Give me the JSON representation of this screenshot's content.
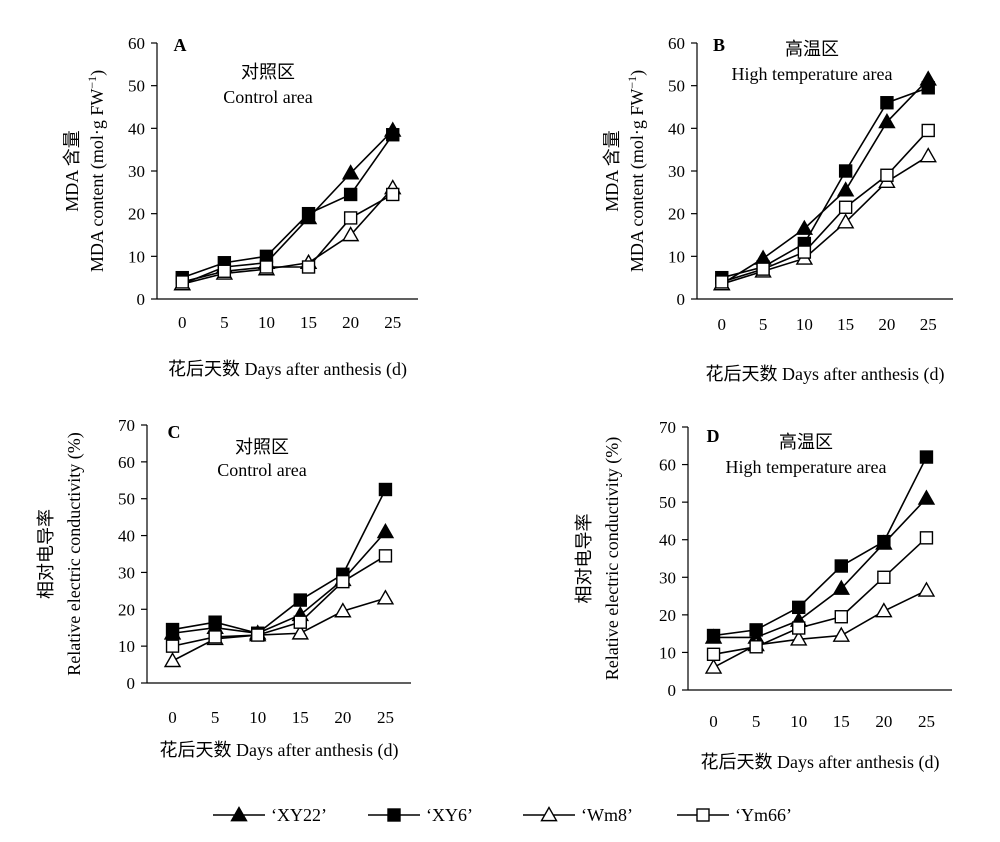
{
  "chart_data": [
    {
      "type": "line",
      "panel_label": "A",
      "annotation_cn": "对照区",
      "annotation_en": "Control area",
      "ylabel_cn": "MDA 含量",
      "ylabel_en": "MDA content (mol·g FW",
      "ylabel_sup": "−1",
      "ylabel_close": ")",
      "xlabel": "花后天数  Days after anthesis (d)",
      "x": [
        0,
        5,
        10,
        15,
        20,
        25
      ],
      "xlim": [
        -3,
        28
      ],
      "ylim": [
        0,
        60
      ],
      "yticks": [
        0,
        10,
        20,
        30,
        40,
        50,
        60
      ],
      "grid": false,
      "series": [
        {
          "name": "‘XY22’",
          "marker": "triangle-filled",
          "values": [
            3.5,
            7.5,
            8.5,
            19,
            29.5,
            39.5
          ]
        },
        {
          "name": "‘XY6’",
          "marker": "square-filled",
          "values": [
            5,
            8.5,
            10,
            20,
            24.5,
            38.5
          ]
        },
        {
          "name": "‘Wm8’",
          "marker": "triangle-open",
          "values": [
            3.5,
            6,
            7,
            8.5,
            15,
            26
          ]
        },
        {
          "name": "‘Ym66’",
          "marker": "square-open",
          "values": [
            4,
            6.5,
            7.5,
            7.5,
            19,
            24.5
          ]
        }
      ]
    },
    {
      "type": "line",
      "panel_label": "B",
      "annotation_cn": "高温区",
      "annotation_en": "High temperature area",
      "ylabel_cn": "MDA 含量",
      "ylabel_en": "MDA content (mol·g FW",
      "ylabel_sup": "−1",
      "ylabel_close": ")",
      "xlabel": "花后天数  Days after anthesis (d)",
      "x": [
        0,
        5,
        10,
        15,
        20,
        25
      ],
      "xlim": [
        -3,
        28
      ],
      "ylim": [
        0,
        60
      ],
      "yticks": [
        0,
        10,
        20,
        30,
        40,
        50,
        60
      ],
      "grid": false,
      "series": [
        {
          "name": "‘XY22’",
          "marker": "triangle-filled",
          "values": [
            3.5,
            9.5,
            16.5,
            25.5,
            41.5,
            51.5
          ]
        },
        {
          "name": "‘XY6’",
          "marker": "square-filled",
          "values": [
            5,
            7.5,
            13,
            30,
            46,
            49.5
          ]
        },
        {
          "name": "‘Wm8’",
          "marker": "triangle-open",
          "values": [
            3.5,
            6.5,
            9.5,
            18,
            27.5,
            33.5
          ]
        },
        {
          "name": "‘Ym66’",
          "marker": "square-open",
          "values": [
            4,
            7,
            11,
            21.5,
            29,
            39.5
          ]
        }
      ]
    },
    {
      "type": "line",
      "panel_label": "C",
      "annotation_cn": "对照区",
      "annotation_en": "Control area",
      "ylabel_cn": "相对电导率",
      "ylabel_en": "Relative electric conductivity (%)",
      "xlabel": "花后天数  Days after anthesis (d)",
      "x": [
        0,
        5,
        10,
        15,
        20,
        25
      ],
      "xlim": [
        -3,
        28
      ],
      "ylim": [
        0,
        70
      ],
      "yticks": [
        0,
        10,
        20,
        30,
        40,
        50,
        60,
        70
      ],
      "grid": false,
      "series": [
        {
          "name": "‘XY22’",
          "marker": "triangle-filled",
          "values": [
            13.5,
            15,
            13.5,
            18.5,
            28,
            41
          ]
        },
        {
          "name": "‘XY6’",
          "marker": "square-filled",
          "values": [
            14.5,
            16.5,
            13.5,
            22.5,
            29.5,
            52.5
          ]
        },
        {
          "name": "‘Wm8’",
          "marker": "triangle-open",
          "values": [
            6,
            12,
            13,
            13.5,
            19.5,
            23
          ]
        },
        {
          "name": "‘Ym66’",
          "marker": "square-open",
          "values": [
            10,
            12.5,
            13,
            16.5,
            27.5,
            34.5
          ]
        }
      ]
    },
    {
      "type": "line",
      "panel_label": "D",
      "annotation_cn": "高温区",
      "annotation_en": "High temperature area",
      "ylabel_cn": "相对电导率",
      "ylabel_en": "Relative electric conductivity (%)",
      "xlabel": "花后天数  Days after anthesis (d)",
      "x": [
        0,
        5,
        10,
        15,
        20,
        25
      ],
      "xlim": [
        -3,
        28
      ],
      "ylim": [
        0,
        70
      ],
      "yticks": [
        0,
        10,
        20,
        30,
        40,
        50,
        60,
        70
      ],
      "grid": false,
      "series": [
        {
          "name": "‘XY22’",
          "marker": "triangle-filled",
          "values": [
            14,
            14,
            18.5,
            27,
            39,
            51
          ]
        },
        {
          "name": "‘XY6’",
          "marker": "square-filled",
          "values": [
            14.5,
            16,
            22,
            33,
            39.5,
            62
          ]
        },
        {
          "name": "‘Wm8’",
          "marker": "triangle-open",
          "values": [
            6,
            12,
            13.5,
            14.5,
            21,
            26.5
          ]
        },
        {
          "name": "‘Ym66’",
          "marker": "square-open",
          "values": [
            9.5,
            11.5,
            16.5,
            19.5,
            30,
            40.5
          ]
        }
      ]
    }
  ],
  "legend": {
    "placement": "bottom-center",
    "items": [
      {
        "label": "‘XY22’",
        "marker": "triangle-filled"
      },
      {
        "label": "‘XY6’",
        "marker": "square-filled"
      },
      {
        "label": "‘Wm8’",
        "marker": "triangle-open"
      },
      {
        "label": "‘Ym66’",
        "marker": "square-open"
      }
    ]
  }
}
